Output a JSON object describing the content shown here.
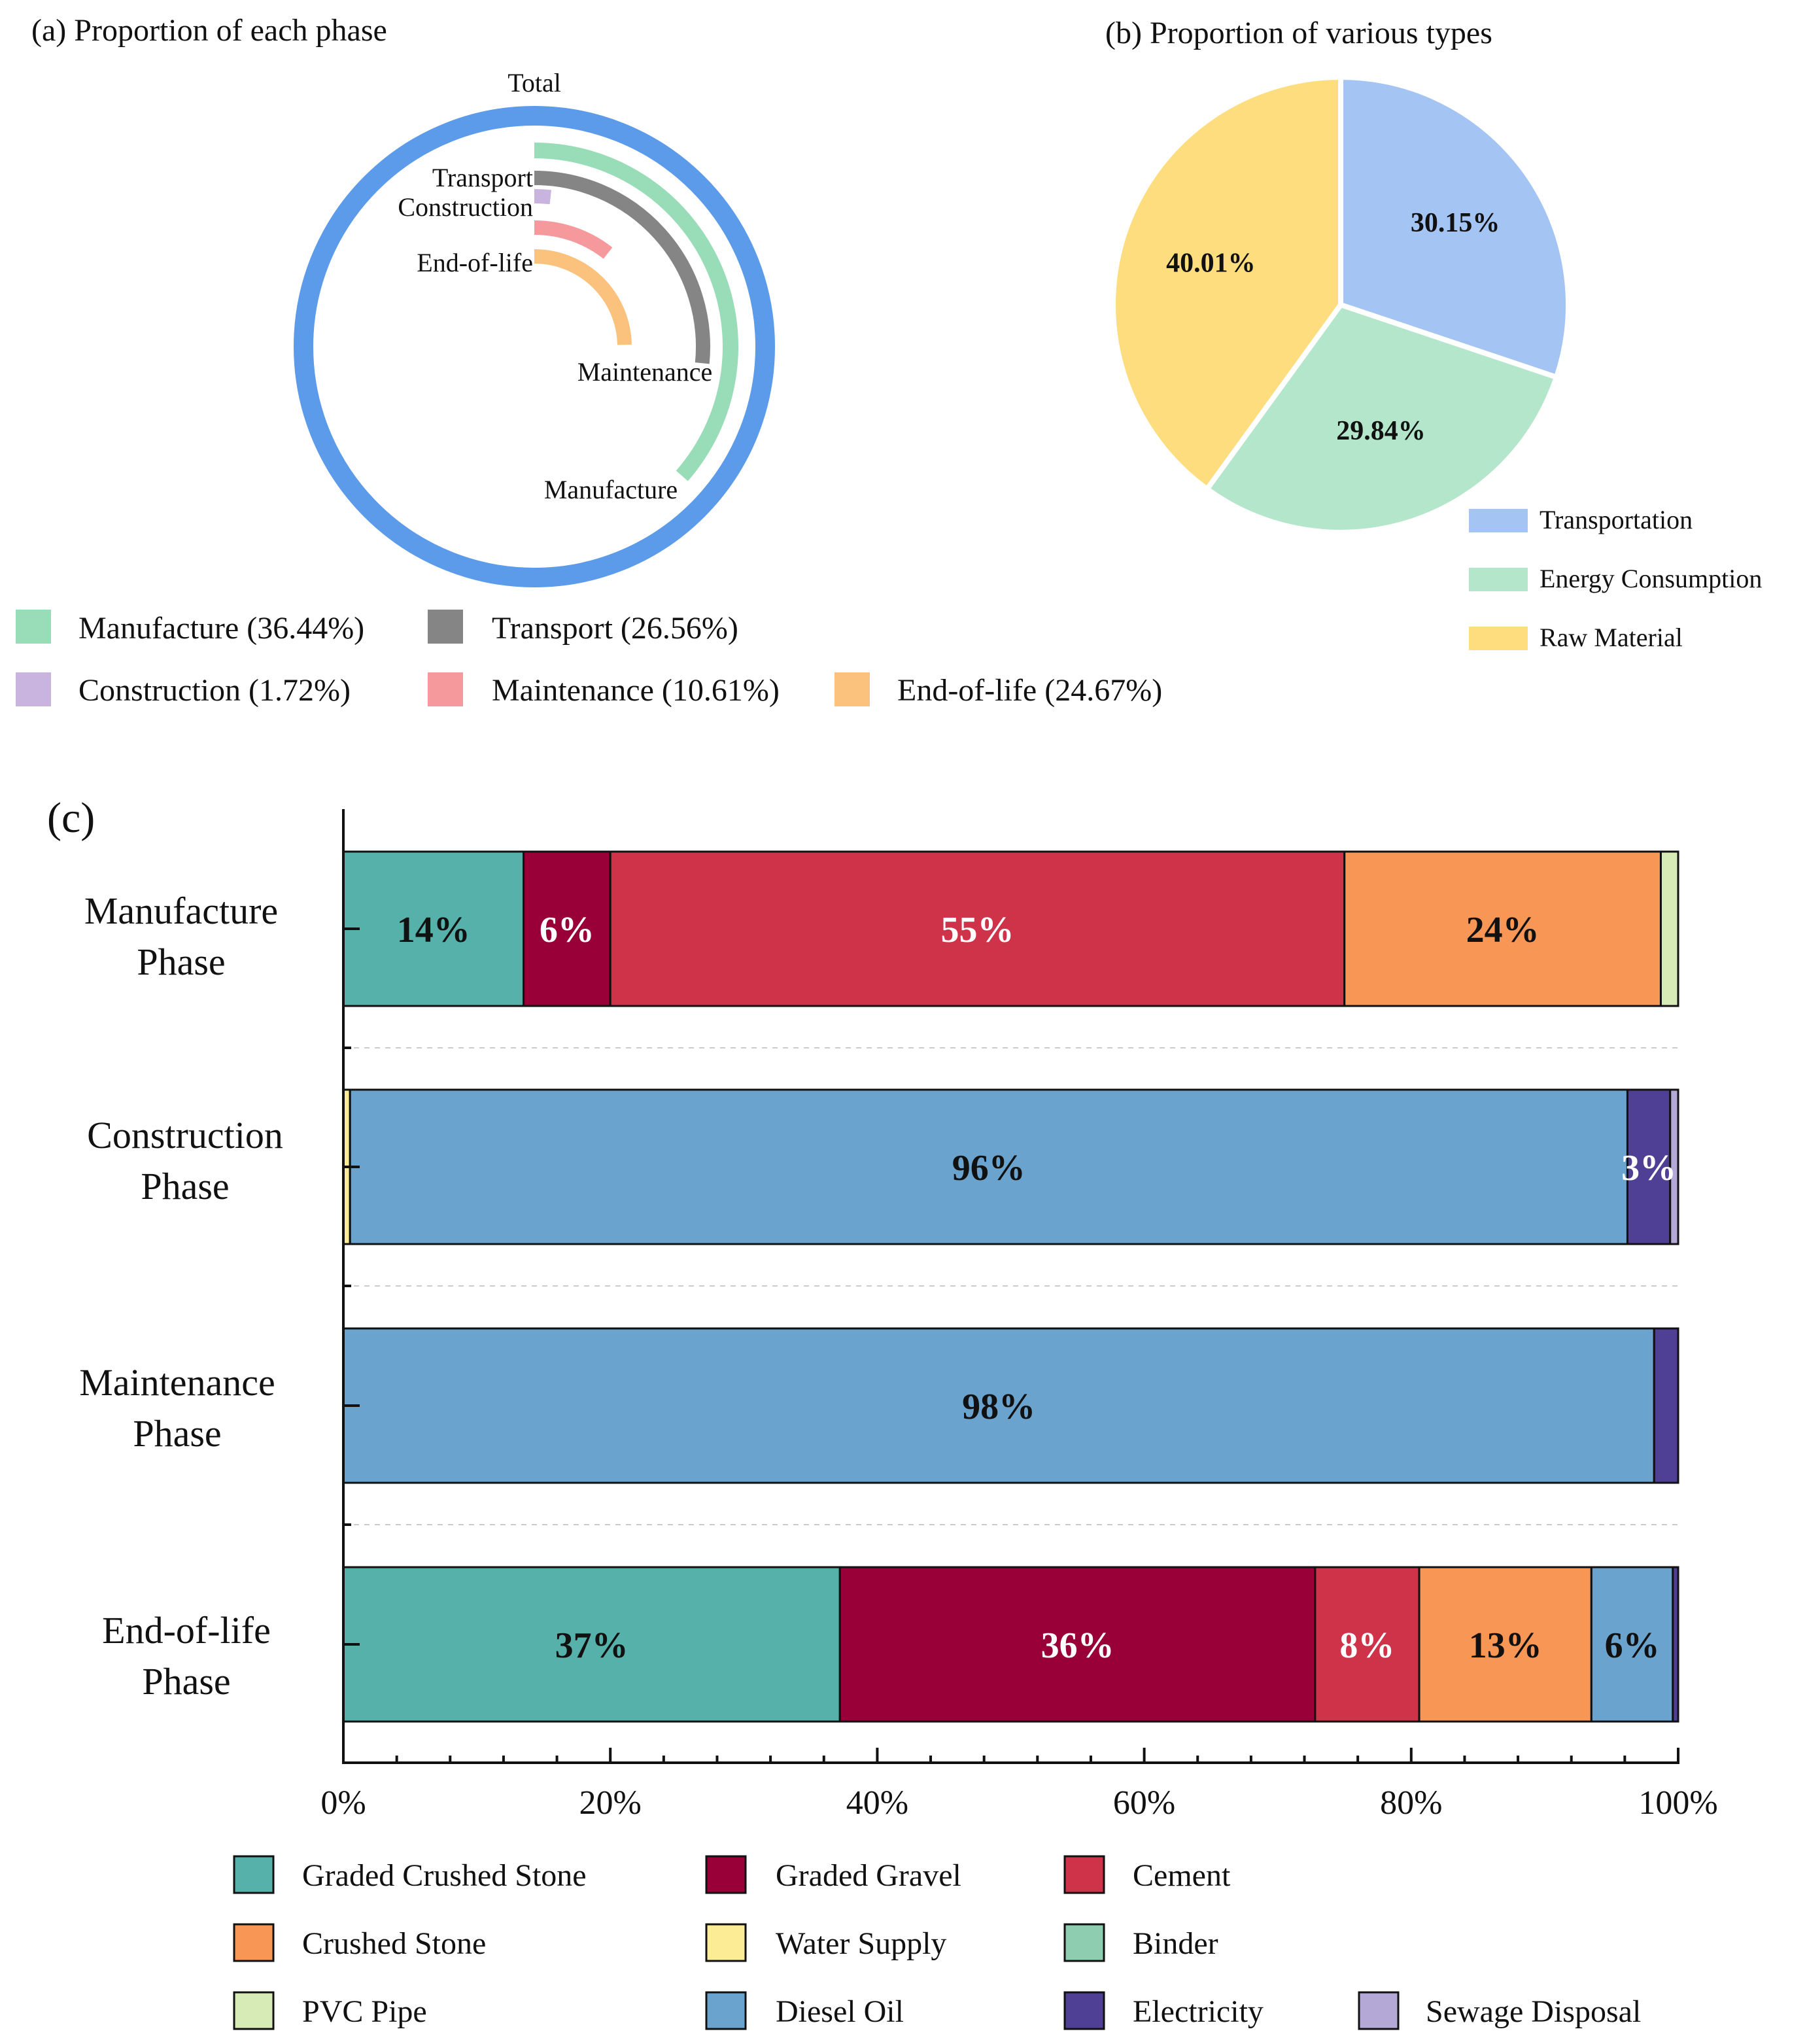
{
  "chart_data": [
    {
      "type": "radial-bar",
      "title": "(a) Proportion of each phase",
      "total_label": "Total",
      "total_color": "#5B9BEA",
      "series": [
        {
          "name": "Manufacture",
          "value": 36.44,
          "legend": "Manufacture (36.44%)",
          "color": "#98DDB8"
        },
        {
          "name": "Transport",
          "value": 26.56,
          "legend": "Transport (26.56%)",
          "color": "#858585"
        },
        {
          "name": "Construction",
          "value": 1.72,
          "legend": "Construction (1.72%)",
          "color": "#C8B4DF"
        },
        {
          "name": "Maintenance",
          "value": 10.61,
          "legend": "Maintenance (10.61%)",
          "color": "#F6999C"
        },
        {
          "name": "End-of-life",
          "value": 24.67,
          "legend": "End-of-life (24.67%)",
          "color": "#FBC27E"
        }
      ]
    },
    {
      "type": "pie",
      "title": "(b) Proportion of various types",
      "slices": [
        {
          "name": "Transportation",
          "value": 30.15,
          "label": "30.15%",
          "color": "#A4C5F4"
        },
        {
          "name": "Energy Consumption",
          "value": 29.84,
          "label": "29.84%",
          "color": "#B4E6CC"
        },
        {
          "name": "Raw Material",
          "value": 40.01,
          "label": "40.01%",
          "color": "#FEDD7E"
        }
      ]
    },
    {
      "type": "bar",
      "orientation": "horizontal",
      "stacked": true,
      "title": "(c)",
      "xlim": [
        0,
        100
      ],
      "xticks": [
        "0%",
        "20%",
        "40%",
        "60%",
        "80%",
        "100%"
      ],
      "materials": [
        {
          "name": "Graded Crushed Stone",
          "color": "#56B1AA"
        },
        {
          "name": "Graded Gravel",
          "color": "#980037"
        },
        {
          "name": "Cement",
          "color": "#CF334A"
        },
        {
          "name": "Crushed Stone",
          "color": "#F89755"
        },
        {
          "name": "Water Supply",
          "color": "#FCEC95"
        },
        {
          "name": "Binder",
          "color": "#8ECDB0"
        },
        {
          "name": "PVC Pipe",
          "color": "#D7EBB6"
        },
        {
          "name": "Diesel Oil",
          "color": "#6AA4CE"
        },
        {
          "name": "Electricity",
          "color": "#4F4095"
        },
        {
          "name": "Sewage Disposal",
          "color": "#B4A8D6"
        }
      ],
      "categories": [
        {
          "line1": "Manufacture",
          "line2": "Phase",
          "segments": [
            {
              "material": "Graded Crushed Stone",
              "value": 13.5,
              "label": "14%",
              "label_color": "#111111"
            },
            {
              "material": "Graded Gravel",
              "value": 6.5,
              "label": "6%",
              "label_color": "#ffffff"
            },
            {
              "material": "Cement",
              "value": 55.0,
              "label": "55%",
              "label_color": "#ffffff"
            },
            {
              "material": "Crushed Stone",
              "value": 23.7,
              "label": "24%",
              "label_color": "#111111"
            },
            {
              "material": "PVC Pipe",
              "value": 1.3,
              "label": "",
              "label_color": "#111111"
            }
          ]
        },
        {
          "line1": "Construction",
          "line2": "Phase",
          "segments": [
            {
              "material": "Water Supply",
              "value": 0.5,
              "label": "",
              "label_color": "#111111"
            },
            {
              "material": "Diesel Oil",
              "value": 95.7,
              "label": "96%",
              "label_color": "#111111"
            },
            {
              "material": "Electricity",
              "value": 3.2,
              "label": "3%",
              "label_color": "#ffffff"
            },
            {
              "material": "Sewage Disposal",
              "value": 0.6,
              "label": "",
              "label_color": "#111111"
            }
          ]
        },
        {
          "line1": "Maintenance",
          "line2": "Phase",
          "segments": [
            {
              "material": "Diesel Oil",
              "value": 98.2,
              "label": "98%",
              "label_color": "#111111"
            },
            {
              "material": "Electricity",
              "value": 1.8,
              "label": "",
              "label_color": "#111111"
            }
          ]
        },
        {
          "line1": "End-of-life",
          "line2": "Phase",
          "segments": [
            {
              "material": "Graded Crushed Stone",
              "value": 37.2,
              "label": "37%",
              "label_color": "#111111"
            },
            {
              "material": "Graded Gravel",
              "value": 35.6,
              "label": "36%",
              "label_color": "#ffffff"
            },
            {
              "material": "Cement",
              "value": 7.8,
              "label": "8%",
              "label_color": "#ffffff"
            },
            {
              "material": "Crushed Stone",
              "value": 12.9,
              "label": "13%",
              "label_color": "#111111"
            },
            {
              "material": "Diesel Oil",
              "value": 6.1,
              "label": "6%",
              "label_color": "#111111"
            },
            {
              "material": "Electricity",
              "value": 0.4,
              "label": "",
              "label_color": "#111111"
            }
          ]
        }
      ]
    }
  ]
}
